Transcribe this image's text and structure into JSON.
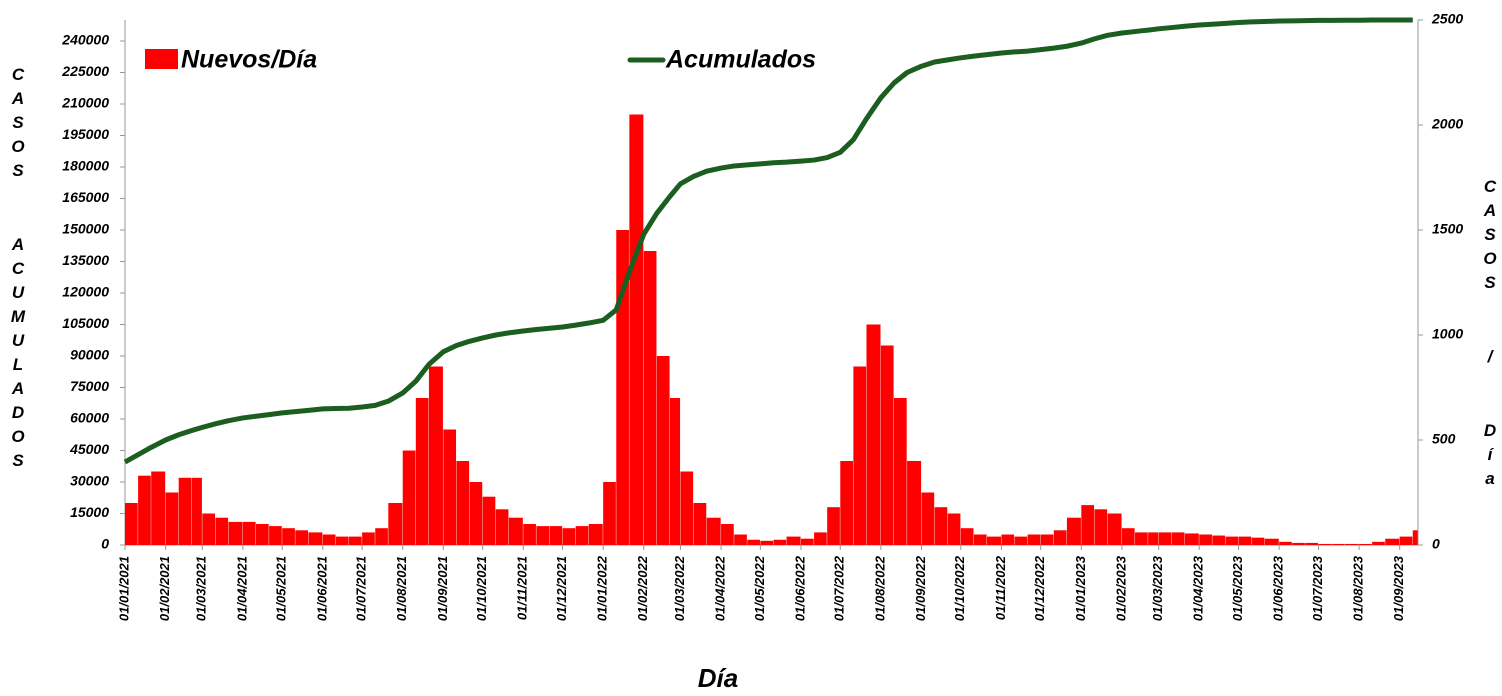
{
  "chart_data": {
    "type": "combo",
    "xlabel": "Día",
    "ylabel": "CASOS ACUMULADOS",
    "y2label": "CASOS / Día",
    "x": [
      "01/01/2021",
      "11/01/2021",
      "21/01/2021",
      "01/02/2021",
      "11/02/2021",
      "21/02/2021",
      "01/03/2021",
      "11/03/2021",
      "21/03/2021",
      "01/04/2021",
      "11/04/2021",
      "21/04/2021",
      "01/05/2021",
      "11/05/2021",
      "21/05/2021",
      "01/06/2021",
      "11/06/2021",
      "21/06/2021",
      "01/07/2021",
      "11/07/2021",
      "21/07/2021",
      "01/08/2021",
      "11/08/2021",
      "21/08/2021",
      "01/09/2021",
      "11/09/2021",
      "21/09/2021",
      "01/10/2021",
      "11/10/2021",
      "21/10/2021",
      "01/11/2021",
      "11/11/2021",
      "21/11/2021",
      "01/12/2021",
      "11/12/2021",
      "21/12/2021",
      "01/01/2022",
      "11/01/2022",
      "21/01/2022",
      "01/02/2022",
      "11/02/2022",
      "21/02/2022",
      "01/03/2022",
      "11/03/2022",
      "21/03/2022",
      "01/04/2022",
      "11/04/2022",
      "21/04/2022",
      "01/05/2022",
      "11/05/2022",
      "21/05/2022",
      "01/06/2022",
      "11/06/2022",
      "21/06/2022",
      "01/07/2022",
      "11/07/2022",
      "21/07/2022",
      "01/08/2022",
      "11/08/2022",
      "21/08/2022",
      "01/09/2022",
      "11/09/2022",
      "21/09/2022",
      "01/10/2022",
      "11/10/2022",
      "21/10/2022",
      "01/11/2022",
      "11/11/2022",
      "21/11/2022",
      "01/12/2022",
      "11/12/2022",
      "21/12/2022",
      "01/01/2023",
      "11/01/2023",
      "21/01/2023",
      "01/02/2023",
      "11/02/2023",
      "21/02/2023",
      "01/03/2023",
      "11/03/2023",
      "21/03/2023",
      "01/04/2023",
      "11/04/2023",
      "21/04/2023",
      "01/05/2023",
      "11/05/2023",
      "21/05/2023",
      "01/06/2023",
      "11/06/2023",
      "21/06/2023",
      "01/07/2023",
      "11/07/2023",
      "21/07/2023",
      "01/08/2023",
      "11/08/2023",
      "21/08/2023",
      "01/09/2023",
      "11/09/2023"
    ],
    "series": [
      {
        "name": "Nuevos/Día",
        "type": "bar",
        "axis": "y2",
        "color": "#ff0000",
        "values": [
          200,
          330,
          350,
          250,
          320,
          320,
          150,
          130,
          110,
          110,
          100,
          90,
          80,
          70,
          60,
          50,
          40,
          40,
          60,
          80,
          200,
          450,
          700,
          850,
          550,
          400,
          300,
          230,
          170,
          130,
          100,
          90,
          90,
          80,
          90,
          100,
          300,
          1500,
          2050,
          1400,
          900,
          700,
          350,
          200,
          130,
          100,
          50,
          25,
          20,
          25,
          40,
          30,
          60,
          180,
          400,
          850,
          1050,
          950,
          700,
          400,
          250,
          180,
          150,
          80,
          50,
          40,
          50,
          40,
          50,
          50,
          70,
          130,
          190,
          170,
          150,
          80,
          60,
          60,
          60,
          60,
          55,
          50,
          45,
          40,
          40,
          35,
          30,
          15,
          10,
          10,
          5,
          5,
          5,
          5,
          15,
          30,
          40,
          70
        ]
      },
      {
        "name": "Acumulados",
        "type": "line",
        "axis": "y",
        "color": "#1b5e20",
        "values": [
          39500,
          43000,
          46500,
          50000,
          52500,
          54500,
          56000,
          57700,
          59200,
          60500,
          61300,
          62100,
          62900,
          63500,
          64100,
          64800,
          65000,
          65100,
          65700,
          66500,
          68500,
          72400,
          78000,
          86000,
          92000,
          95000,
          97000,
          98600,
          100000,
          101000,
          101900,
          102600,
          103200,
          103800,
          104700,
          105700,
          107000,
          112000,
          130000,
          148000,
          158000,
          166000,
          172000,
          175500,
          178000,
          179500,
          180500,
          181000,
          181500,
          182000,
          182300,
          182800,
          183300,
          184500,
          187000,
          193000,
          203000,
          213000,
          220000,
          225000,
          228000,
          230000,
          231000,
          232000,
          232800,
          233500,
          234300,
          234800,
          235200,
          235900,
          236600,
          237500,
          239000,
          241000,
          242700,
          243800,
          244500,
          245200,
          245800,
          246400,
          247000,
          247600,
          248000,
          248400,
          248800,
          249100,
          249300,
          249500,
          249600,
          249700,
          249800,
          249800,
          249900,
          249900,
          250000,
          250000,
          250000,
          250000
        ]
      }
    ],
    "xlim": [
      "01/01/2021",
      "15/09/2023"
    ],
    "xticks": [
      "01/01/2021",
      "01/02/2021",
      "01/03/2021",
      "01/04/2021",
      "01/05/2021",
      "01/06/2021",
      "01/07/2021",
      "01/08/2021",
      "01/09/2021",
      "01/10/2021",
      "01/11/2021",
      "01/12/2021",
      "01/01/2022",
      "01/02/2022",
      "01/03/2022",
      "01/04/2022",
      "01/05/2022",
      "01/06/2022",
      "01/07/2022",
      "01/08/2022",
      "01/09/2022",
      "01/10/2022",
      "01/11/2022",
      "01/12/2022",
      "01/01/2023",
      "01/02/2023",
      "01/03/2023",
      "01/04/2023",
      "01/05/2023",
      "01/06/2023",
      "01/07/2023",
      "01/08/2023",
      "01/09/2023"
    ],
    "ylim": [
      0,
      250000
    ],
    "yticks": [
      0,
      15000,
      30000,
      45000,
      60000,
      75000,
      90000,
      105000,
      120000,
      135000,
      150000,
      165000,
      180000,
      195000,
      210000,
      225000,
      240000
    ],
    "y2lim": [
      0,
      2500
    ],
    "y2ticks": [
      0,
      500,
      1000,
      1500,
      2000,
      2500
    ],
    "grid": false
  }
}
